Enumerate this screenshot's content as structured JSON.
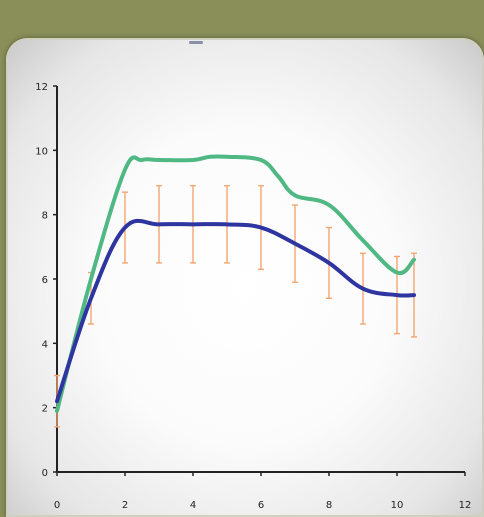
{
  "chart_data": {
    "type": "line",
    "xlim": [
      0,
      12
    ],
    "ylim": [
      0,
      12
    ],
    "x_ticks": [
      "0",
      "2",
      "4",
      "6",
      "8",
      "10",
      "12"
    ],
    "y_ticks": [
      "0",
      "2",
      "4",
      "6",
      "8",
      "10",
      "12"
    ],
    "grid": false,
    "series": [
      {
        "color": "#4fb883",
        "x": [
          0,
          1,
          2,
          2.5,
          3,
          4,
          4.5,
          5,
          6,
          6.5,
          7,
          8,
          9,
          10,
          10.5
        ],
        "y": [
          1.9,
          6.0,
          9.4,
          9.7,
          9.7,
          9.7,
          9.8,
          9.8,
          9.7,
          9.2,
          8.6,
          8.3,
          7.2,
          6.2,
          6.6
        ]
      },
      {
        "color": "#2e35a0",
        "x": [
          0,
          1,
          2,
          3,
          4,
          5,
          6,
          7,
          8,
          9,
          10,
          10.5
        ],
        "y": [
          2.2,
          5.4,
          7.6,
          7.7,
          7.7,
          7.7,
          7.6,
          7.1,
          6.5,
          5.7,
          5.5,
          5.5
        ],
        "error": [
          0.8,
          0.8,
          1.1,
          1.2,
          1.2,
          1.2,
          1.3,
          1.2,
          1.1,
          1.1,
          1.2,
          1.3
        ]
      }
    ]
  }
}
